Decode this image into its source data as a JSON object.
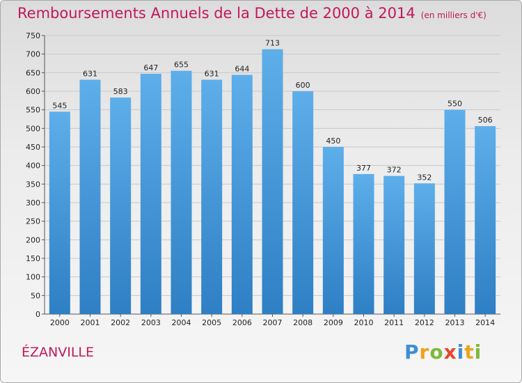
{
  "header": {
    "title": "Remboursements Annuels de la Dette de 2000 à 2014",
    "subtitle": "(en milliers d'€)"
  },
  "footer": {
    "city": "ÉZANVILLE",
    "logo": "Proxiti"
  },
  "colors": {
    "bar_light": "#5eaeea",
    "bar_dark": "#2e7fc4",
    "title": "#c2185b"
  },
  "chart_data": {
    "type": "bar",
    "title": "Remboursements Annuels de la Dette de 2000 à 2014",
    "ylabel": "en milliers d'€",
    "xlabel": "",
    "categories": [
      "2000",
      "2001",
      "2002",
      "2003",
      "2004",
      "2005",
      "2006",
      "2007",
      "2008",
      "2009",
      "2010",
      "2011",
      "2012",
      "2013",
      "2014"
    ],
    "values": [
      545,
      631,
      583,
      647,
      655,
      631,
      644,
      713,
      600,
      450,
      377,
      372,
      352,
      550,
      506
    ],
    "ylim": [
      0,
      750
    ],
    "yticks": [
      0,
      50,
      100,
      150,
      200,
      250,
      300,
      350,
      400,
      450,
      500,
      550,
      600,
      650,
      700,
      750
    ],
    "grid": true
  }
}
